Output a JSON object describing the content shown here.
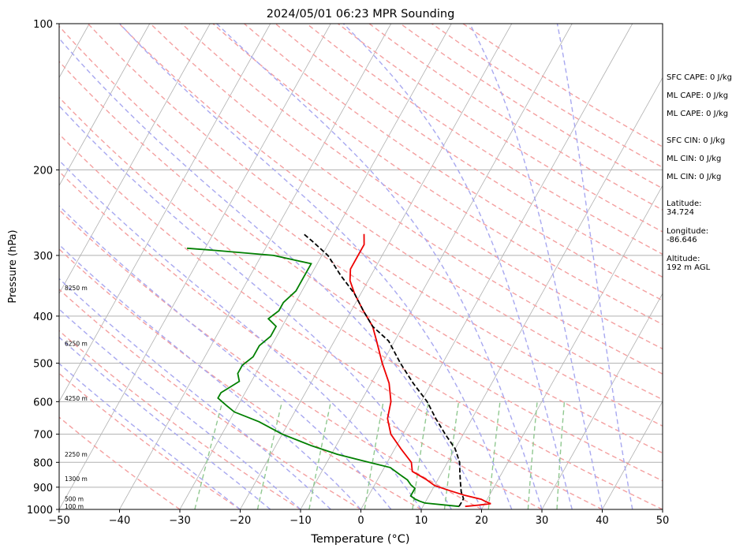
{
  "chart_data": {
    "type": "line",
    "title": "2024/05/01 06:23 MPR Sounding",
    "xlabel": "Temperature (°C)",
    "ylabel": "Pressure (hPa)",
    "xlim": [
      -50,
      50
    ],
    "ylim": [
      1000,
      100
    ],
    "y_scale": "log",
    "x_ticks": [
      -50,
      -40,
      -30,
      -20,
      -10,
      0,
      10,
      20,
      30,
      40,
      50
    ],
    "x_tick_labels": [
      "−50",
      "−40",
      "−30",
      "−20",
      "−10",
      "0",
      "10",
      "20",
      "30",
      "40",
      "50"
    ],
    "y_ticks": [
      1000,
      900,
      800,
      700,
      600,
      500,
      400,
      300,
      200,
      100
    ],
    "y_tick_labels": [
      "1000",
      "900",
      "800",
      "700",
      "600",
      "500",
      "400",
      "300",
      "200",
      "100"
    ],
    "height_labels": [
      {
        "text": "100 m",
        "p": 985
      },
      {
        "text": "500 m",
        "p": 950
      },
      {
        "text": "1300 m",
        "p": 865
      },
      {
        "text": "2250 m",
        "p": 770
      },
      {
        "text": "4250 m",
        "p": 590
      },
      {
        "text": "6250 m",
        "p": 455
      },
      {
        "text": "8250 m",
        "p": 350
      }
    ],
    "series": [
      {
        "role": "temperature",
        "color": "#ee0000",
        "style": "solid",
        "points": [
          [
            17,
            986
          ],
          [
            19,
            980
          ],
          [
            21,
            973
          ],
          [
            20,
            964
          ],
          [
            19,
            953
          ],
          [
            16,
            936
          ],
          [
            13,
            915
          ],
          [
            10,
            893
          ],
          [
            8,
            867
          ],
          [
            5,
            835
          ],
          [
            4,
            800
          ],
          [
            1,
            750
          ],
          [
            -2,
            700
          ],
          [
            -4,
            650
          ],
          [
            -5,
            600
          ],
          [
            -7,
            550
          ],
          [
            -10,
            500
          ],
          [
            -13,
            450
          ],
          [
            -15,
            420
          ],
          [
            -18,
            390
          ],
          [
            -21,
            360
          ],
          [
            -23,
            338
          ],
          [
            -24,
            320
          ],
          [
            -24,
            300
          ],
          [
            -24,
            285
          ],
          [
            -25,
            271
          ]
        ]
      },
      {
        "role": "dewpoint",
        "color": "#007f00",
        "style": "solid",
        "points": [
          [
            16,
            986
          ],
          [
            10,
            970
          ],
          [
            9,
            962
          ],
          [
            8,
            952
          ],
          [
            7,
            938
          ],
          [
            7,
            922
          ],
          [
            7,
            905
          ],
          [
            6,
            890
          ],
          [
            5,
            870
          ],
          [
            3,
            845
          ],
          [
            1,
            820
          ],
          [
            -4,
            795
          ],
          [
            -9,
            770
          ],
          [
            -14,
            740
          ],
          [
            -20,
            700
          ],
          [
            -25,
            660
          ],
          [
            -30,
            630
          ],
          [
            -32,
            610
          ],
          [
            -34,
            590
          ],
          [
            -34,
            575
          ],
          [
            -33,
            560
          ],
          [
            -32,
            545
          ],
          [
            -33,
            525
          ],
          [
            -33,
            505
          ],
          [
            -32,
            485
          ],
          [
            -32,
            460
          ],
          [
            -31,
            440
          ],
          [
            -31,
            420
          ],
          [
            -33,
            405
          ],
          [
            -32,
            390
          ],
          [
            -32,
            375
          ],
          [
            -31,
            355
          ],
          [
            -31,
            340
          ],
          [
            -31,
            325
          ],
          [
            -31,
            312
          ],
          [
            -38,
            300
          ],
          [
            -48,
            293
          ],
          [
            -53,
            290
          ]
        ]
      },
      {
        "role": "parcel",
        "color": "#000000",
        "style": "dashed",
        "points": [
          [
            16,
            986
          ],
          [
            16,
            970
          ],
          [
            16,
            950
          ],
          [
            15,
            920
          ],
          [
            14,
            880
          ],
          [
            13,
            840
          ],
          [
            12,
            800
          ],
          [
            10,
            750
          ],
          [
            7,
            700
          ],
          [
            4,
            650
          ],
          [
            1,
            600
          ],
          [
            -3,
            550
          ],
          [
            -7,
            500
          ],
          [
            -11,
            450
          ],
          [
            -15,
            420
          ],
          [
            -18,
            390
          ],
          [
            -21,
            360
          ],
          [
            -25,
            330
          ],
          [
            -29,
            300
          ],
          [
            -33,
            280
          ],
          [
            -35,
            271
          ]
        ]
      }
    ],
    "stats": [
      {
        "label": "SFC CAPE",
        "value": "0 J/kg"
      },
      {
        "label": "ML CAPE",
        "value": "0 J/kg"
      },
      {
        "label": "ML CAPE",
        "value": "0 J/kg"
      },
      {
        "label": "SFC CIN",
        "value": "0 J/kg"
      },
      {
        "label": "ML CIN",
        "value": "0 J/kg"
      },
      {
        "label": "ML CIN",
        "value": "0 J/kg"
      }
    ],
    "station": {
      "latitude_label": "Latitude:",
      "latitude": "34.724",
      "longitude_label": "Longitude:",
      "longitude": "-86.646",
      "altitude_label": "Altitude:",
      "altitude": "192 m AGL"
    },
    "colors": {
      "isotherm": "#b0b0b0",
      "dry_adiabat": "#f4a0a0",
      "moist_adiabat": "#a8a8f0",
      "mixing_ratio": "#90c890"
    }
  }
}
